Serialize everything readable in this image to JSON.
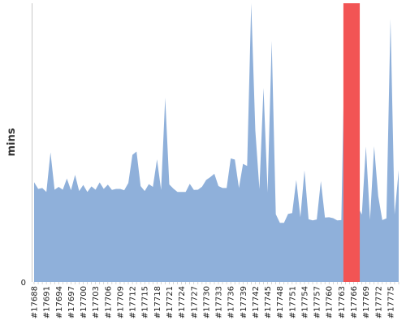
{
  "chart_data": {
    "type": "area",
    "ylabel": "mins",
    "ylim": [
      0,
      100
    ],
    "y_tick_labels": [
      "0"
    ],
    "x_tick_labels": [
      "#17688",
      "#17691",
      "#17694",
      "#17697",
      "#17700",
      "#17703",
      "#17706",
      "#17709",
      "#17712",
      "#17715",
      "#17718",
      "#17721",
      "#17724",
      "#17727",
      "#17730",
      "#17733",
      "#17736",
      "#17739",
      "#17742",
      "#17745",
      "#17748",
      "#17751",
      "#17754",
      "#17757",
      "#17760",
      "#17763",
      "#17766",
      "#17769",
      "#17772",
      "#17775"
    ],
    "x_first_build": 17688,
    "series": [
      {
        "values": [
          35.8,
          33.4,
          33.7,
          32.3,
          46.5,
          33.1,
          34.1,
          33.1,
          37.1,
          32.9,
          38.4,
          32.6,
          34.8,
          32.3,
          34.3,
          33.1,
          35.7,
          33.4,
          34.9,
          33.0,
          33.4,
          33.4,
          32.9,
          35.5,
          45.6,
          46.8,
          34.4,
          32.6,
          35.1,
          34.1,
          44.0,
          33.0,
          66.1,
          35.0,
          33.5,
          32.3,
          32.3,
          32.3,
          35.2,
          33.0,
          33.1,
          34.2,
          36.6,
          37.6,
          38.8,
          34.4,
          33.7,
          33.7,
          44.3,
          43.9,
          33.7,
          42.4,
          41.6,
          100,
          54.4,
          33.3,
          69.6,
          32.1,
          86.5,
          24.3,
          21.2,
          21.2,
          24.4,
          24.7,
          36.6,
          23.2,
          40.0,
          22.5,
          22.1,
          22.4,
          36.2,
          23.1,
          23.2,
          22.9,
          22.1,
          22.2,
          100,
          100,
          100,
          27.0,
          24.2,
          48.6,
          22.3,
          48.7,
          30.8,
          22.2,
          22.8,
          94.4,
          24.2,
          40.1
        ],
        "highlight_builds": [
          17764,
          17765,
          17766,
          17767
        ]
      }
    ],
    "colors": {
      "area": "#8fb0da",
      "highlight": "#f25454",
      "axis": "#c8c8c8"
    },
    "grid": false
  }
}
